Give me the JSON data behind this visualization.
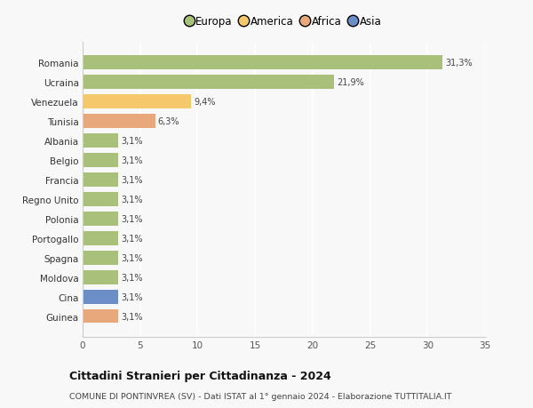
{
  "countries": [
    "Romania",
    "Ucraina",
    "Venezuela",
    "Tunisia",
    "Albania",
    "Belgio",
    "Francia",
    "Regno Unito",
    "Polonia",
    "Portogallo",
    "Spagna",
    "Moldova",
    "Cina",
    "Guinea"
  ],
  "values": [
    31.3,
    21.9,
    9.4,
    6.3,
    3.1,
    3.1,
    3.1,
    3.1,
    3.1,
    3.1,
    3.1,
    3.1,
    3.1,
    3.1
  ],
  "labels": [
    "31,3%",
    "21,9%",
    "9,4%",
    "6,3%",
    "3,1%",
    "3,1%",
    "3,1%",
    "3,1%",
    "3,1%",
    "3,1%",
    "3,1%",
    "3,1%",
    "3,1%",
    "3,1%"
  ],
  "colors": [
    "#a8c07a",
    "#a8c07a",
    "#f5c96b",
    "#e8a87c",
    "#a8c07a",
    "#a8c07a",
    "#a8c07a",
    "#a8c07a",
    "#a8c07a",
    "#a8c07a",
    "#a8c07a",
    "#a8c07a",
    "#6b8ec7",
    "#e8a87c"
  ],
  "legend": [
    {
      "label": "Europa",
      "color": "#a8c07a"
    },
    {
      "label": "America",
      "color": "#f5c96b"
    },
    {
      "label": "Africa",
      "color": "#e8a87c"
    },
    {
      "label": "Asia",
      "color": "#6b8ec7"
    }
  ],
  "xlim": [
    0,
    35
  ],
  "xticks": [
    0,
    5,
    10,
    15,
    20,
    25,
    30,
    35
  ],
  "title": "Cittadini Stranieri per Cittadinanza - 2024",
  "subtitle": "COMUNE DI PONTINVREA (SV) - Dati ISTAT al 1° gennaio 2024 - Elaborazione TUTTITALIA.IT",
  "background_color": "#f8f8f8",
  "grid_color": "#ffffff",
  "bar_height": 0.72
}
